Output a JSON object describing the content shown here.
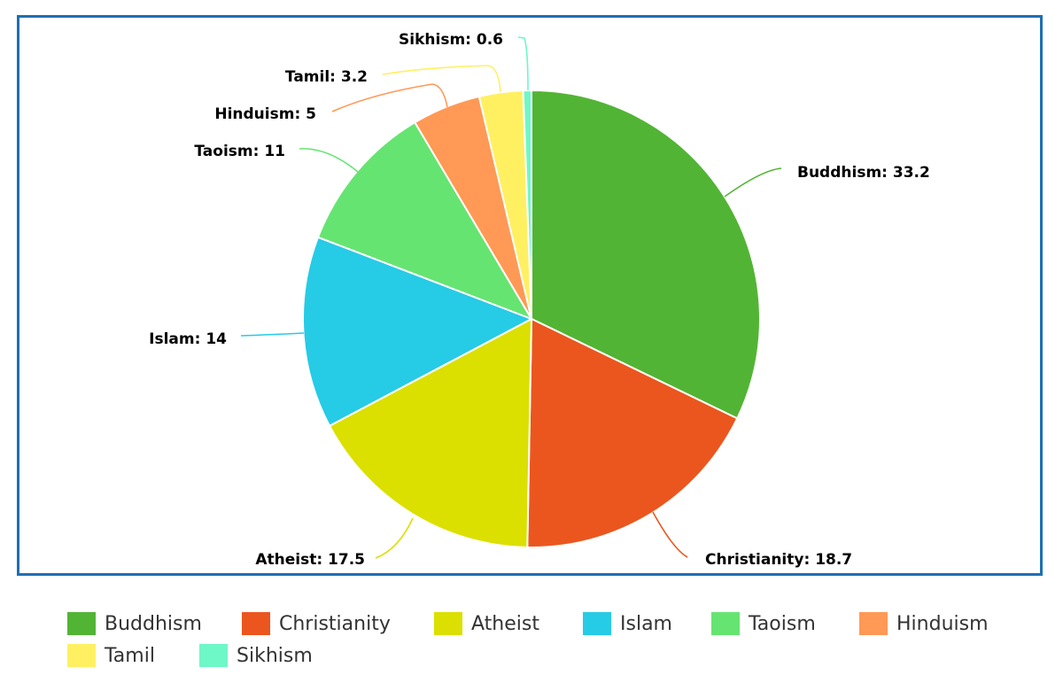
{
  "chart_data": {
    "type": "pie",
    "title": "",
    "categories": [
      "Buddhism",
      "Christianity",
      "Atheist",
      "Islam",
      "Taoism",
      "Hinduism",
      "Tamil",
      "Sikhism"
    ],
    "values": [
      33.2,
      18.7,
      17.5,
      14,
      11,
      5,
      3.2,
      0.6
    ],
    "colors": [
      "#52b434",
      "#eb561e",
      "#dbe000",
      "#26cbe6",
      "#66e472",
      "#ff9955",
      "#fff062",
      "#6ef7c7"
    ],
    "data_labels": [
      "Buddhism: 33.2",
      "Christianity: 18.7",
      "Atheist: 17.5",
      "Islam: 14",
      "Taoism: 11",
      "Hinduism: 5",
      "Tamil: 3.2",
      "Sikhism: 0.6"
    ],
    "legend": {
      "position": "bottom",
      "entries": [
        "Buddhism",
        "Christianity",
        "Atheist",
        "Islam",
        "Taoism",
        "Hinduism",
        "Tamil",
        "Sikhism"
      ]
    },
    "frame_color": "#1f6fb2"
  }
}
